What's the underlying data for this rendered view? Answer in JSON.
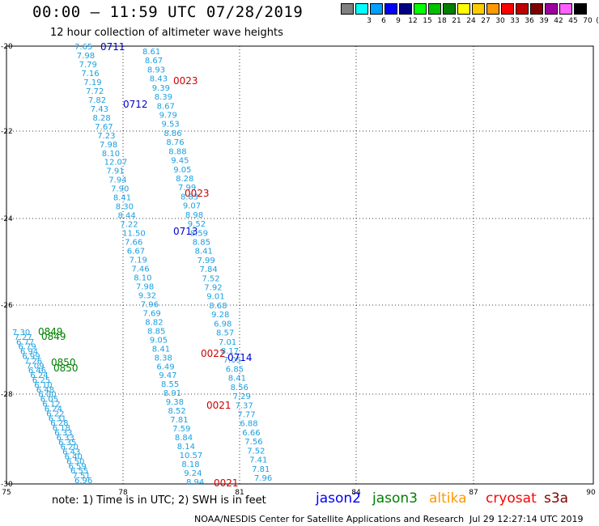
{
  "header": {
    "title": "00:00 – 11:59 UTC 07/28/2019",
    "subtitle": "12 hour collection of altimeter wave heights"
  },
  "legend": {
    "unit": "(ft)",
    "bins": [
      {
        "color": "#808080",
        "label": ""
      },
      {
        "color": "#00ffff",
        "label": "3"
      },
      {
        "color": "#00a0ff",
        "label": "6"
      },
      {
        "color": "#0000ff",
        "label": "9"
      },
      {
        "color": "#000080",
        "label": "12"
      },
      {
        "color": "#00ff00",
        "label": "15"
      },
      {
        "color": "#00c000",
        "label": "18"
      },
      {
        "color": "#008000",
        "label": "21"
      },
      {
        "color": "#ffff00",
        "label": "24"
      },
      {
        "color": "#ffcc00",
        "label": "27"
      },
      {
        "color": "#ff9900",
        "label": "30"
      },
      {
        "color": "#ff0000",
        "label": "33"
      },
      {
        "color": "#c00000",
        "label": "36"
      },
      {
        "color": "#800000",
        "label": "39"
      },
      {
        "color": "#a000a0",
        "label": "42"
      },
      {
        "color": "#ff60ff",
        "label": "45"
      },
      {
        "color": "#000000",
        "label": "70"
      }
    ]
  },
  "axes": {
    "x_ticks": [
      "75",
      "78",
      "81",
      "84",
      "87",
      "90"
    ],
    "y_ticks": [
      "-20",
      "-22",
      "-24",
      "-26",
      "-28",
      "-30"
    ],
    "grid": true
  },
  "passes": {
    "jason2_a": {
      "color": "#1a9fe0",
      "time_label": "0711",
      "time_label_color": "#0000cc",
      "values": [
        "7.65",
        "7.98",
        "7.79",
        "7.16",
        "7.19",
        "7.72",
        "7.82",
        "7.43",
        "8.28",
        "7.67",
        "7.23",
        "7.98",
        "8.10",
        "12.07",
        "7.91",
        "7.94",
        "7.90",
        "8.41",
        "8.30",
        "8.44",
        "7.22",
        "11.50",
        "7.66",
        "6.67",
        "7.19",
        "7.46",
        "8.10",
        "7.98",
        "9.32",
        "7.96",
        "7.69",
        "8.82",
        "8.85",
        "9.05",
        "8.41",
        "8.38",
        "6.49",
        "9.47",
        "8.55",
        "8.91",
        "9.38",
        "8.52",
        "7.81",
        "7.59",
        "8.84",
        "8.14",
        "10.57",
        "8.18",
        "9.24",
        "8.94"
      ]
    },
    "jason2_b": {
      "color": "#1a9fe0",
      "time_label": "0712",
      "time_label_color": "#0000cc",
      "values": [
        "8.61",
        "8.67",
        "8.93",
        "8.43",
        "9.39",
        "8.39",
        "8.67",
        "9.79",
        "9.53",
        "8.86",
        "8.76",
        "8.88",
        "9.45",
        "9.05",
        "8.28",
        "7.99",
        "8.83",
        "9.07",
        "8.98",
        "9.52",
        "8.59",
        "8.85",
        "8.41",
        "7.99",
        "7.84",
        "7.52",
        "7.92",
        "9.01",
        "8.68",
        "9.28",
        "6.98",
        "8.57",
        "7.01",
        "8.17",
        "7.05",
        "6.85",
        "8.41",
        "8.56",
        "7.29",
        "7.37",
        "7.77",
        "6.88",
        "6.66",
        "7.56",
        "7.52",
        "7.41",
        "7.81",
        "7.96"
      ]
    },
    "cryosat": {
      "color": "#cc0000",
      "labels": [
        "0023",
        "0023",
        "0022",
        "0021",
        "0021"
      ]
    },
    "jason3": {
      "color": "#008000",
      "labels": [
        "0849",
        "0849",
        "0850",
        "0850"
      ]
    },
    "west_track": {
      "color": "#1a9fe0",
      "values": [
        "7.30",
        "7.27",
        "6.77",
        "6.79",
        "6.94",
        "6.99",
        "7.26",
        "7.09",
        "6.46",
        "6.24",
        "6.25",
        "6.10",
        "6.48",
        "6.00",
        "6.05",
        "6.12",
        "6.24",
        "6.22",
        "6.31",
        "6.28",
        "6.18",
        "6.33",
        "6.33",
        "6.35",
        "6.20",
        "6.43",
        "6.40",
        "6.50",
        "6.59",
        "6.55",
        "7.51",
        "6.96"
      ]
    },
    "time_label_0713": "0713",
    "time_label_0714": "0714"
  },
  "footer": {
    "note": "note:  1) Time is in UTC;  2) SWH is in feet",
    "satellites": [
      {
        "name": "jason2",
        "color": "#0000ff"
      },
      {
        "name": "jason3",
        "color": "#008000"
      },
      {
        "name": "altika",
        "color": "#ff9900"
      },
      {
        "name": "cryosat",
        "color": "#ff0000"
      },
      {
        "name": "s3a",
        "color": "#800000"
      }
    ],
    "credit": "NOAA/NESDIS Center for Satellite Applications and Research",
    "timestamp": "Jul 29 12:27:14 UTC 2019"
  }
}
